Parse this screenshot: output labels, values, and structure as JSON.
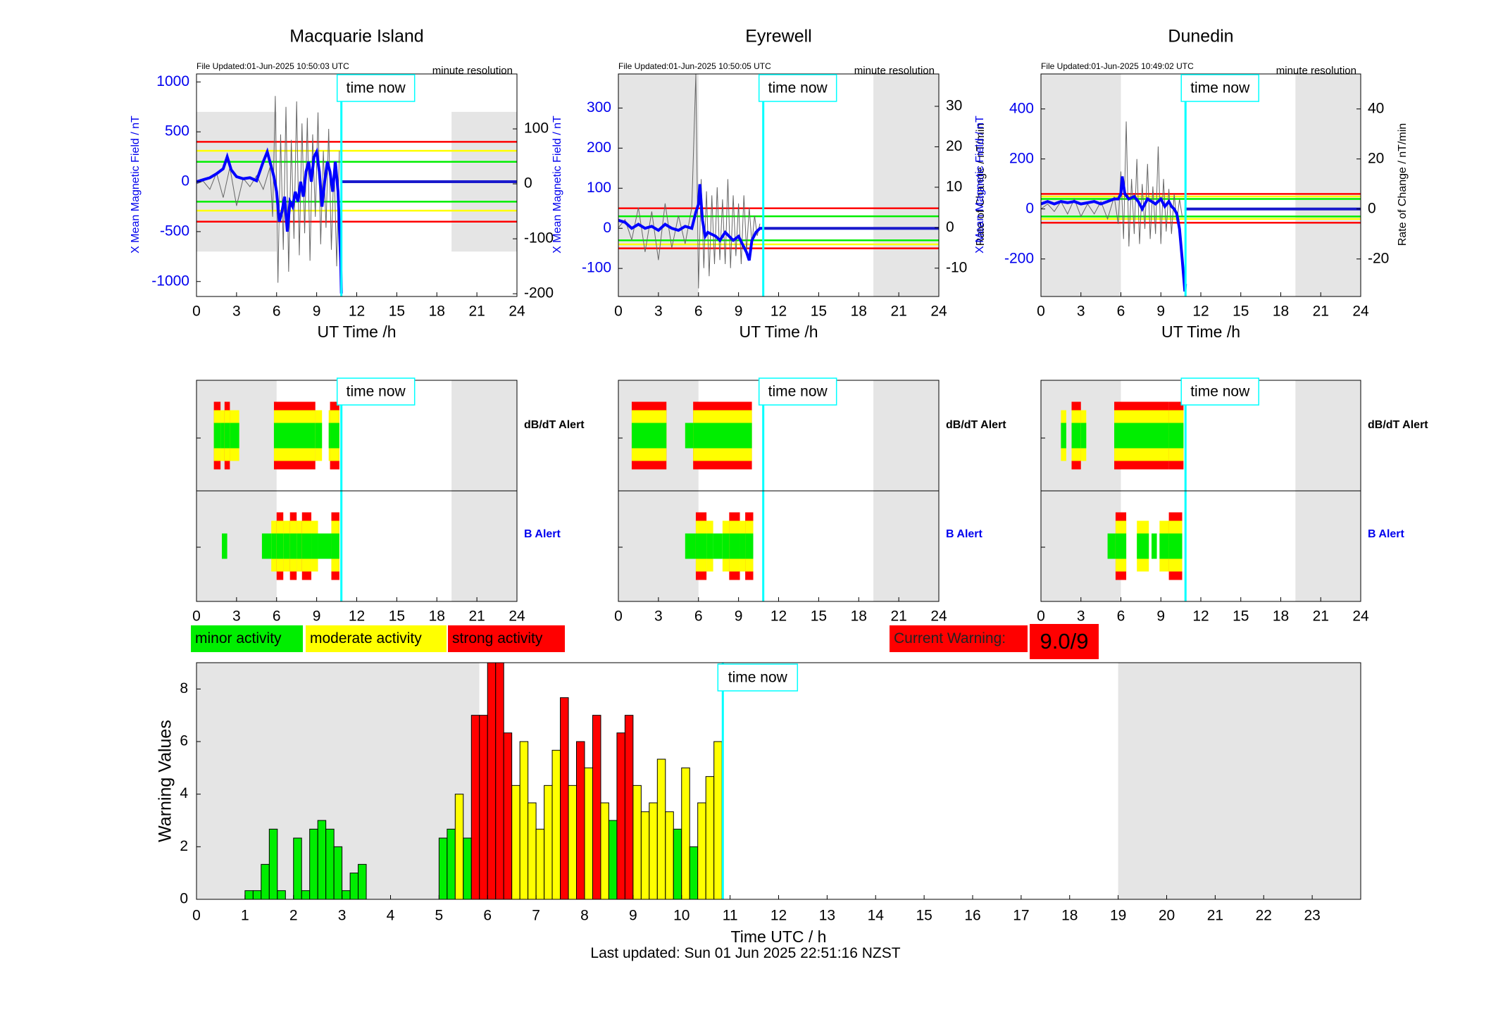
{
  "legend": {
    "minor": "minor activity",
    "moderate": "moderate activity",
    "strong": "strong activity",
    "colors": {
      "minor": "#00ee00",
      "moderate": "#ffff00",
      "strong": "#ff0000",
      "timeline": "#00ffff",
      "night": "#e5e5e5",
      "mean": "#0000ff"
    }
  },
  "warning": {
    "label": "Current Warning:",
    "value": "9.0/9"
  },
  "last_updated": "Last updated: Sun 01 Jun 2025 22:51:16 NZST",
  "time_now_label": "time now",
  "alert_labels": {
    "dbdt": "dB/dT Alert",
    "b": "B Alert"
  },
  "chart_data": [
    {
      "type": "line",
      "station": "Macquarie Island",
      "file_updated": "File Updated:01-Jun-2025 10:50:03 UTC",
      "resolution": "minute resolution",
      "xlabel": "UT Time /h",
      "ylabel_left": "X Mean Magnetic Field / nT",
      "ylabel_right": "",
      "xlim": [
        0,
        24
      ],
      "xticks": [
        0,
        3,
        6,
        9,
        12,
        15,
        18,
        21,
        24
      ],
      "ylim_left": [
        -1150,
        1080
      ],
      "yticks_left": [
        -1000,
        -500,
        0,
        500,
        1000
      ],
      "ylim_right": [
        -205,
        200
      ],
      "yticks_right": [
        -200,
        -100,
        0,
        100
      ],
      "night": [
        [
          0,
          6
        ],
        [
          19.1,
          24
        ]
      ],
      "night_y": [
        -700,
        700
      ],
      "thresholds": [
        {
          "value": 400,
          "color": "red"
        },
        {
          "value": 310,
          "color": "yellow"
        },
        {
          "value": 200,
          "color": "green"
        },
        {
          "value": -200,
          "color": "green"
        },
        {
          "value": -290,
          "color": "yellow"
        },
        {
          "value": -400,
          "color": "red"
        }
      ],
      "now": 10.85,
      "mean_series": {
        "x": [
          0,
          0.5,
          1,
          1.5,
          2,
          2.3,
          2.6,
          3,
          3.5,
          4,
          4.5,
          5,
          5.3,
          5.6,
          5.8,
          6,
          6.2,
          6.4,
          6.6,
          6.8,
          7,
          7.2,
          7.4,
          7.6,
          7.8,
          8,
          8.2,
          8.4,
          8.6,
          8.8,
          9,
          9.2,
          9.4,
          9.6,
          9.8,
          10,
          10.2,
          10.4,
          10.6,
          10.8,
          10.85
        ],
        "y": [
          0,
          20,
          40,
          80,
          130,
          250,
          120,
          50,
          30,
          40,
          10,
          200,
          300,
          150,
          50,
          -100,
          -400,
          -300,
          -150,
          -500,
          -200,
          -250,
          -100,
          -200,
          0,
          -150,
          100,
          200,
          0,
          250,
          300,
          100,
          -250,
          0,
          200,
          100,
          -100,
          200,
          -100,
          -800,
          -1120
        ]
      },
      "future_mean": 0,
      "dbdt_series": {
        "x": [
          0,
          0.5,
          1,
          1.5,
          2,
          2.5,
          3,
          3.5,
          4,
          4.5,
          5,
          5.5,
          5.7,
          5.9,
          6.1,
          6.3,
          6.5,
          6.7,
          6.9,
          7.1,
          7.3,
          7.5,
          7.7,
          7.9,
          8.1,
          8.3,
          8.5,
          8.7,
          8.9,
          9.1,
          9.3,
          9.5,
          9.7,
          9.9,
          10.1,
          10.3,
          10.5,
          10.7
        ],
        "y": [
          0,
          5,
          -10,
          20,
          -25,
          30,
          -40,
          10,
          -5,
          15,
          -10,
          30,
          -60,
          160,
          -180,
          90,
          -120,
          140,
          -160,
          80,
          -100,
          150,
          -130,
          110,
          -90,
          120,
          -140,
          90,
          -60,
          130,
          -110,
          60,
          -80,
          100,
          -120,
          40,
          -150,
          60
        ]
      }
    },
    {
      "type": "line",
      "station": "Eyrewell",
      "file_updated": "File Updated:01-Jun-2025 10:50:05 UTC",
      "resolution": "minute resolution",
      "xlabel": "UT Time /h",
      "ylabel_left": "X Mean Magnetic Field / nT",
      "ylabel_right": "Rate of Change / nT/min",
      "xlim": [
        0,
        24
      ],
      "xticks": [
        0,
        3,
        6,
        9,
        12,
        15,
        18,
        21,
        24
      ],
      "ylim_left": [
        -170,
        385
      ],
      "yticks_left": [
        -100,
        0,
        100,
        200,
        300
      ],
      "ylim_right": [
        -17,
        38
      ],
      "yticks_right": [
        -10,
        0,
        10,
        20,
        30
      ],
      "night": [
        [
          0,
          6
        ],
        [
          19.1,
          24
        ]
      ],
      "night_y": [
        -170,
        385
      ],
      "thresholds": [
        {
          "value": 50,
          "color": "red"
        },
        {
          "value": 30,
          "color": "green"
        },
        {
          "value": -30,
          "color": "green"
        },
        {
          "value": -40,
          "color": "yellow"
        },
        {
          "value": -50,
          "color": "red"
        }
      ],
      "now": 10.85,
      "mean_series": {
        "x": [
          0,
          0.5,
          1,
          1.5,
          2,
          2.5,
          3,
          3.5,
          4,
          4.5,
          5,
          5.5,
          5.8,
          6,
          6.1,
          6.3,
          6.5,
          6.7,
          7,
          7.3,
          7.6,
          8,
          8.3,
          8.6,
          9,
          9.3,
          9.6,
          9.8,
          10,
          10.3,
          10.6,
          10.85
        ],
        "y": [
          20,
          15,
          0,
          10,
          0,
          5,
          -5,
          10,
          0,
          -5,
          5,
          0,
          40,
          60,
          110,
          20,
          -20,
          -10,
          -15,
          -20,
          -30,
          -10,
          -20,
          -30,
          -20,
          -40,
          -60,
          -80,
          -30,
          -10,
          0,
          0
        ]
      },
      "future_mean": 0,
      "dbdt_series": {
        "x": [
          0,
          0.5,
          1,
          1.5,
          2,
          2.5,
          3,
          3.5,
          4,
          4.5,
          5,
          5.5,
          5.8,
          6,
          6.2,
          6.4,
          6.6,
          6.8,
          7,
          7.2,
          7.4,
          7.6,
          7.8,
          8,
          8.2,
          8.4,
          8.6,
          8.8,
          9,
          9.2,
          9.4,
          9.6,
          9.8,
          10,
          10.2,
          10.4,
          10.6
        ],
        "y": [
          0,
          2,
          -3,
          5,
          -6,
          4,
          -8,
          6,
          -5,
          3,
          -4,
          5,
          38,
          -15,
          12,
          -10,
          9,
          -12,
          8,
          -9,
          10,
          -8,
          7,
          -9,
          12,
          -10,
          8,
          -7,
          6,
          -9,
          8,
          -6,
          5,
          -4,
          3,
          -2,
          1
        ]
      }
    },
    {
      "type": "line",
      "station": "Dunedin",
      "file_updated": "File Updated:01-Jun-2025 10:49:02 UTC",
      "resolution": "minute resolution",
      "xlabel": "UT Time /h",
      "ylabel_left": "X Mean Magnetic Field / nT",
      "ylabel_right": "Rate of Change / nT/min",
      "xlim": [
        0,
        24
      ],
      "xticks": [
        0,
        3,
        6,
        9,
        12,
        15,
        18,
        21,
        24
      ],
      "ylim_left": [
        -350,
        540
      ],
      "yticks_left": [
        -200,
        0,
        200,
        400
      ],
      "ylim_right": [
        -35,
        54
      ],
      "yticks_right": [
        -20,
        0,
        20,
        40
      ],
      "night": [
        [
          0,
          6
        ],
        [
          19.1,
          24
        ]
      ],
      "night_y": [
        -350,
        540
      ],
      "thresholds": [
        {
          "value": 60,
          "color": "red"
        },
        {
          "value": 50,
          "color": "yellow"
        },
        {
          "value": 40,
          "color": "green"
        },
        {
          "value": -30,
          "color": "green"
        },
        {
          "value": -40,
          "color": "yellow"
        },
        {
          "value": -55,
          "color": "red"
        }
      ],
      "now": 10.85,
      "mean_series": {
        "x": [
          0,
          0.5,
          1,
          1.5,
          2,
          2.5,
          3,
          3.5,
          4,
          4.5,
          5,
          5.5,
          5.8,
          6,
          6.1,
          6.3,
          6.6,
          7,
          7.3,
          7.6,
          8,
          8.3,
          8.6,
          9,
          9.3,
          9.6,
          9.8,
          10,
          10.2,
          10.4,
          10.6,
          10.8,
          10.85
        ],
        "y": [
          20,
          30,
          20,
          30,
          25,
          30,
          20,
          25,
          30,
          20,
          30,
          40,
          40,
          60,
          130,
          60,
          40,
          50,
          30,
          0,
          40,
          30,
          20,
          40,
          10,
          30,
          10,
          0,
          -20,
          -80,
          -200,
          -330,
          -300
        ]
      },
      "future_mean": 0,
      "dbdt_series": {
        "x": [
          0,
          0.5,
          1,
          1.5,
          2,
          2.5,
          3,
          3.5,
          4,
          4.5,
          5,
          5.5,
          5.8,
          6,
          6.2,
          6.4,
          6.6,
          6.8,
          7,
          7.2,
          7.4,
          7.6,
          7.8,
          8,
          8.2,
          8.4,
          8.6,
          8.8,
          9,
          9.2,
          9.4,
          9.6,
          9.8,
          10,
          10.2,
          10.4,
          10.6
        ],
        "y": [
          0,
          2,
          -1,
          3,
          -2,
          4,
          -3,
          2,
          -2,
          3,
          -4,
          5,
          -6,
          15,
          -12,
          35,
          -15,
          12,
          -10,
          20,
          -14,
          10,
          -8,
          18,
          -12,
          9,
          -10,
          25,
          -14,
          12,
          -9,
          8,
          -10,
          6,
          -5,
          4,
          -3
        ]
      }
    },
    {
      "type": "heatmap",
      "name": "alert strips",
      "xlim": [
        0,
        24
      ],
      "xticks": [
        0,
        3,
        6,
        9,
        12,
        15,
        18,
        21,
        24
      ],
      "now": 10.85,
      "stations": [
        {
          "station": "Macquarie Island",
          "dbdt": [
            [
              1.3,
              1.8,
              "red"
            ],
            [
              1.8,
              2.1,
              "yellow"
            ],
            [
              2.1,
              2.5,
              "red"
            ],
            [
              2.5,
              3.2,
              "yellow"
            ],
            [
              5.8,
              8.9,
              "red"
            ],
            [
              8.9,
              9.4,
              "yellow"
            ],
            [
              9.9,
              10.0,
              "yellow"
            ],
            [
              10.0,
              10.7,
              "red"
            ]
          ],
          "b": [
            [
              1.9,
              2.3,
              "minor"
            ],
            [
              4.9,
              5.6,
              "minor"
            ],
            [
              5.6,
              6.0,
              "yellow"
            ],
            [
              6.0,
              6.5,
              "red"
            ],
            [
              6.5,
              7.0,
              "yellow"
            ],
            [
              7.0,
              7.5,
              "red"
            ],
            [
              7.5,
              7.9,
              "yellow"
            ],
            [
              7.9,
              8.6,
              "red"
            ],
            [
              8.6,
              9.1,
              "yellow"
            ],
            [
              9.1,
              10.1,
              "minor"
            ],
            [
              10.1,
              10.7,
              "red"
            ]
          ]
        },
        {
          "station": "Eyrewell",
          "dbdt": [
            [
              1.0,
              3.6,
              "red"
            ],
            [
              5.0,
              5.6,
              "minor"
            ],
            [
              5.6,
              10.0,
              "red"
            ]
          ],
          "b": [
            [
              5.0,
              5.8,
              "minor"
            ],
            [
              5.8,
              6.6,
              "red"
            ],
            [
              6.6,
              7.1,
              "yellow"
            ],
            [
              7.1,
              7.8,
              "minor"
            ],
            [
              7.8,
              8.3,
              "yellow"
            ],
            [
              8.3,
              9.1,
              "red"
            ],
            [
              9.1,
              9.5,
              "yellow"
            ],
            [
              9.5,
              10.1,
              "red"
            ]
          ]
        },
        {
          "station": "Dunedin",
          "dbdt": [
            [
              1.5,
              1.9,
              "yellow"
            ],
            [
              2.3,
              3.0,
              "red"
            ],
            [
              3.0,
              3.4,
              "yellow"
            ],
            [
              5.5,
              9.6,
              "red"
            ],
            [
              9.6,
              10.7,
              "red"
            ]
          ],
          "b": [
            [
              5.0,
              5.6,
              "minor"
            ],
            [
              5.6,
              6.4,
              "red"
            ],
            [
              7.2,
              8.1,
              "yellow"
            ],
            [
              8.3,
              8.7,
              "minor"
            ],
            [
              8.9,
              9.6,
              "yellow"
            ],
            [
              9.6,
              10.6,
              "red"
            ]
          ]
        }
      ]
    },
    {
      "type": "bar",
      "name": "warning values",
      "xlabel": "Time UTC / h",
      "ylabel": "Warning Values",
      "xlim": [
        0,
        24
      ],
      "xticks": [
        0,
        1,
        2,
        3,
        4,
        5,
        6,
        7,
        8,
        9,
        10,
        11,
        12,
        13,
        14,
        15,
        16,
        17,
        18,
        19,
        20,
        21,
        22,
        23
      ],
      "ylim": [
        0,
        9
      ],
      "yticks": [
        0,
        2,
        4,
        6,
        8
      ],
      "night": [
        [
          0,
          5.83
        ],
        [
          19,
          24
        ]
      ],
      "now": 10.85,
      "bin_width": 0.1667,
      "x": [
        1,
        1.167,
        1.333,
        1.5,
        1.667,
        2,
        2.167,
        2.333,
        2.5,
        2.667,
        2.833,
        3,
        3.167,
        3.333,
        5,
        5.167,
        5.333,
        5.5,
        5.667,
        5.833,
        6,
        6.167,
        6.333,
        6.5,
        6.667,
        6.833,
        7,
        7.167,
        7.333,
        7.5,
        7.667,
        7.833,
        8,
        8.167,
        8.333,
        8.5,
        8.667,
        8.833,
        9,
        9.167,
        9.333,
        9.5,
        9.667,
        9.833,
        10,
        10.167,
        10.333,
        10.5,
        10.667
      ],
      "values": [
        0.33,
        0.33,
        1.33,
        2.67,
        0.33,
        2.33,
        0.33,
        2.67,
        3.0,
        2.67,
        2.0,
        0.33,
        1.0,
        1.33,
        2.33,
        2.67,
        4.0,
        2.33,
        7.0,
        7.0,
        9.0,
        9.0,
        6.33,
        4.33,
        6.0,
        3.67,
        2.67,
        4.33,
        5.67,
        7.67,
        4.33,
        6.0,
        5.0,
        7.0,
        3.67,
        3.0,
        6.33,
        7.0,
        4.33,
        3.33,
        3.67,
        5.33,
        3.33,
        2.67,
        5.0,
        2.0,
        3.67,
        4.67,
        6.0
      ],
      "levels": [
        "minor",
        "minor",
        "minor",
        "minor",
        "minor",
        "minor",
        "minor",
        "minor",
        "minor",
        "minor",
        "minor",
        "minor",
        "minor",
        "minor",
        "minor",
        "minor",
        "moderate",
        "minor",
        "strong",
        "strong",
        "strong",
        "strong",
        "strong",
        "moderate",
        "moderate",
        "moderate",
        "moderate",
        "moderate",
        "moderate",
        "strong",
        "moderate",
        "strong",
        "moderate",
        "strong",
        "moderate",
        "minor",
        "strong",
        "strong",
        "moderate",
        "moderate",
        "moderate",
        "moderate",
        "moderate",
        "minor",
        "moderate",
        "minor",
        "moderate",
        "moderate",
        "moderate"
      ]
    }
  ]
}
